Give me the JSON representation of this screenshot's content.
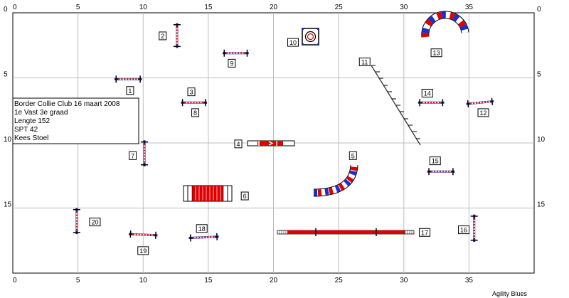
{
  "axis": {
    "x_ticks": [
      {
        "label": "0",
        "v": 0
      },
      {
        "label": "5",
        "v": 5
      },
      {
        "label": "10",
        "v": 10
      },
      {
        "label": "15",
        "v": 15
      },
      {
        "label": "20",
        "v": 20
      },
      {
        "label": "25",
        "v": 25
      },
      {
        "label": "30",
        "v": 30
      },
      {
        "label": "35",
        "v": 35
      }
    ],
    "y_ticks": [
      {
        "label": "0",
        "v": 0
      },
      {
        "label": "5",
        "v": 5
      },
      {
        "label": "10",
        "v": 10
      },
      {
        "label": "15",
        "v": 15
      }
    ],
    "x_range": [
      0,
      40
    ],
    "y_range": [
      0,
      20
    ]
  },
  "info": {
    "line1": "Border Collie Club 16 maart 2008",
    "line2": "1e Vast 3e graad",
    "line3": "Lengte 152",
    "line4": "SPT 42",
    "line5": "Kees Stoel"
  },
  "labels": [
    {
      "text": "1",
      "x": 9,
      "y": 6
    },
    {
      "text": "2",
      "x": 11.5,
      "y": 1.8
    },
    {
      "text": "3",
      "x": 13.7,
      "y": 6.1
    },
    {
      "text": "4",
      "x": 17.3,
      "y": 10.1
    },
    {
      "text": "5",
      "x": 26.1,
      "y": 11
    },
    {
      "text": "6",
      "x": 17.8,
      "y": 14.1
    },
    {
      "text": "7",
      "x": 9.2,
      "y": 11
    },
    {
      "text": "8",
      "x": 14,
      "y": 7.7
    },
    {
      "text": "9",
      "x": 16.8,
      "y": 3.9
    },
    {
      "text": "10",
      "x": 21.5,
      "y": 2.3
    },
    {
      "text": "11",
      "x": 27,
      "y": 3.8
    },
    {
      "text": "12",
      "x": 36.1,
      "y": 7.7
    },
    {
      "text": "13",
      "x": 32.5,
      "y": 3.1
    },
    {
      "text": "14",
      "x": 31.8,
      "y": 6.2
    },
    {
      "text": "15",
      "x": 32.4,
      "y": 11.4
    },
    {
      "text": "16",
      "x": 34.6,
      "y": 16.7
    },
    {
      "text": "17",
      "x": 31.6,
      "y": 16.9
    },
    {
      "text": "18",
      "x": 14.5,
      "y": 16.6
    },
    {
      "text": "19",
      "x": 10,
      "y": 18.3
    },
    {
      "text": "20",
      "x": 6.3,
      "y": 16.1
    }
  ],
  "hurdles": [
    {
      "x1": 7.8,
      "y1": 5.1,
      "x2": 9.9,
      "y2": 5.1
    },
    {
      "x1": 12.6,
      "y1": 0.8,
      "x2": 12.6,
      "y2": 2.7
    },
    {
      "x1": 16.1,
      "y1": 3.1,
      "x2": 18.1,
      "y2": 3.1
    },
    {
      "x1": 12.9,
      "y1": 6.9,
      "x2": 14.9,
      "y2": 6.9
    },
    {
      "x1": 10.1,
      "y1": 9.8,
      "x2": 10.1,
      "y2": 11.8
    },
    {
      "x1": 31.1,
      "y1": 6.9,
      "x2": 33.1,
      "y2": 6.9
    },
    {
      "x1": 34.8,
      "y1": 7.0,
      "x2": 36.9,
      "y2": 6.8
    },
    {
      "x1": 31.8,
      "y1": 12.2,
      "x2": 33.9,
      "y2": 12.2
    },
    {
      "x1": 4.9,
      "y1": 15.0,
      "x2": 4.9,
      "y2": 17.0
    },
    {
      "x1": 8.9,
      "y1": 17.0,
      "x2": 11.1,
      "y2": 17.1
    },
    {
      "x1": 13.5,
      "y1": 17.3,
      "x2": 15.8,
      "y2": 17.2
    },
    {
      "x1": 35.4,
      "y1": 15.5,
      "x2": 35.4,
      "y2": 17.6
    }
  ],
  "footer": "Agility Blues"
}
